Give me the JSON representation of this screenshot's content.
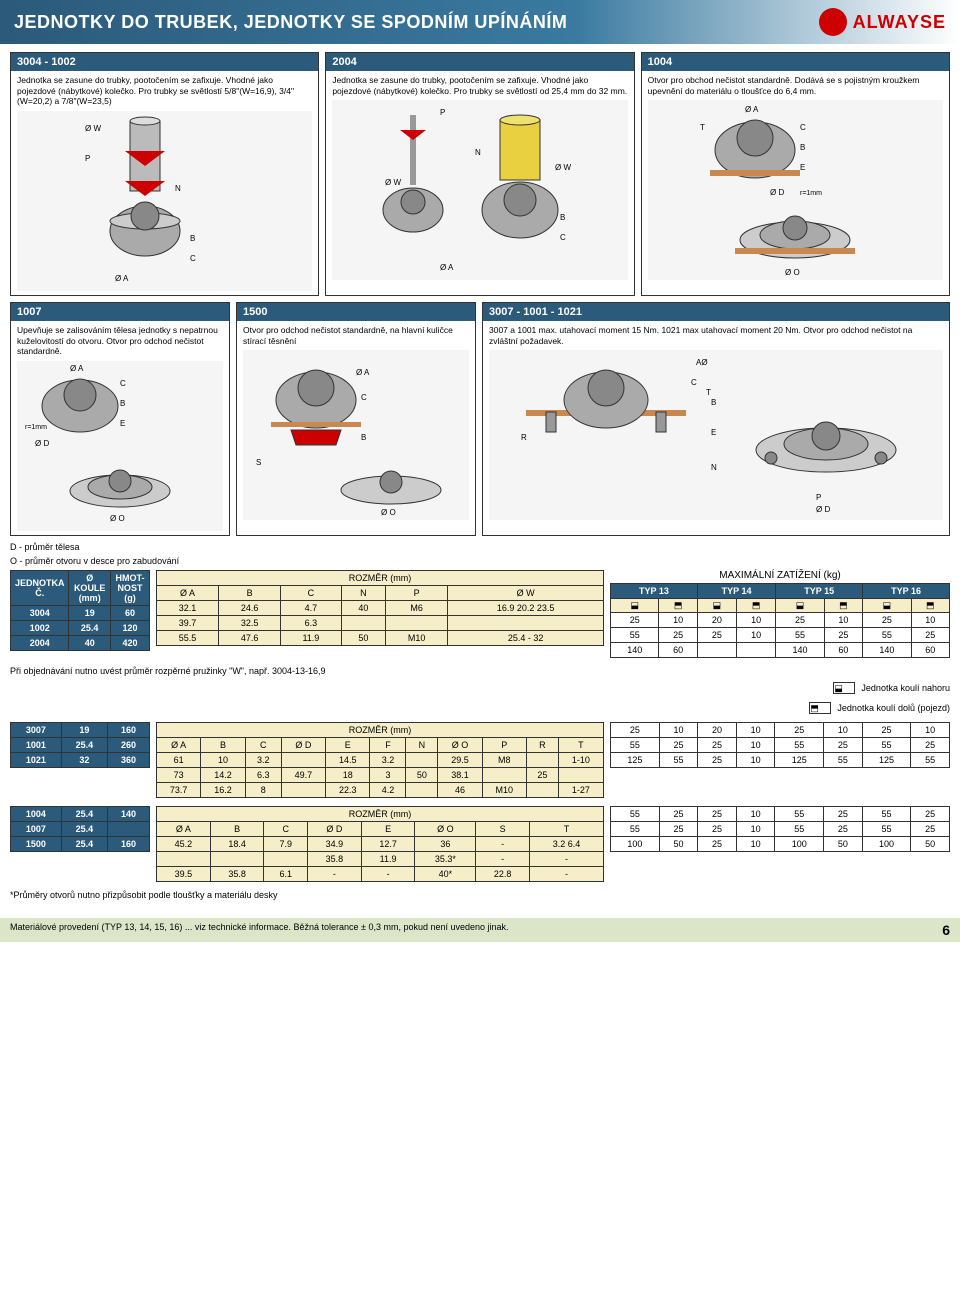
{
  "header": {
    "title": "JEDNOTKY DO TRUBEK, JEDNOTKY SE SPODNÍM UPÍNÁNÍM",
    "brand": "ALWAYSE"
  },
  "boxes": {
    "b3004_1002": {
      "title": "3004 - 1002",
      "desc": "Jednotka se zasune do trubky, pootočením se zafixuje. Vhodné jako pojezdové (nábytkové) kolečko. Pro trubky se světlostí 5/8\"(W=16,9), 3/4\"(W=20,2) a 7/8\"(W=23,5)"
    },
    "b2004": {
      "title": "2004",
      "desc": "Jednotka se zasune do trubky, pootočením se zafixuje. Vhodné jako pojezdové (nábytkové) kolečko. Pro trubky se světlostí od 25,4 mm do 32 mm."
    },
    "b1004": {
      "title": "1004",
      "desc": "Otvor pro obchod nečistot standardně. Dodává se s pojistným kroužkem upevnění do materiálu o tloušťce do 6,4 mm."
    },
    "b1007": {
      "title": "1007",
      "desc": "Upevňuje se zalisováním tělesa jednotky s nepatrnou kuželovitostí do otvoru. Otvor pro odchod nečistot standardně."
    },
    "b1500": {
      "title": "1500",
      "desc": "Otvor pro odchod nečistot standardně, na hlavní kuličce stírací těsnění"
    },
    "b3007": {
      "title": "3007 - 1001 - 1021",
      "desc": "3007 a 1001 max. utahovací moment 15 Nm. 1021 max utahovací moment 20 Nm. Otvor pro odchod nečistot na zvláštní požadavek."
    }
  },
  "notes": {
    "d_note": "D - průměr tělesa",
    "o_note": "O - průměr otvoru v desce pro zabudování",
    "order_note": "Při objednávání nutno uvést průměr rozpěrné pružinky \"W\", např. 3004-13-16,9",
    "ast_note": "*Průměry otvorů nutno přizpůsobit podle tloušťky a materiálu desky",
    "legend_up": "Jednotka koulí nahoru",
    "legend_down": "Jednotka koulí dolů (pojezd)"
  },
  "tableHeaders": {
    "unit": "JEDNOTKA Č.",
    "ball": "Ø KOULE (mm)",
    "weight": "HMOT-NOST (g)",
    "dims": "ROZMĚR (mm)",
    "maxload": "MAXIMÁLNÍ ZATÍŽENÍ (kg)",
    "typ13": "TYP 13",
    "typ14": "TYP 14",
    "typ15": "TYP 15",
    "typ16": "TYP 16"
  },
  "table1": {
    "cols": [
      "Ø A",
      "B",
      "C",
      "N",
      "P",
      "Ø W"
    ],
    "rows": [
      {
        "id": "3004",
        "ball": "19",
        "wt": "60",
        "dims": [
          "32.1",
          "24.6",
          "4.7",
          "40",
          "M6",
          "16.9 20.2 23.5"
        ],
        "loads": [
          "25",
          "10",
          "20",
          "10",
          "25",
          "10",
          "25",
          "10"
        ]
      },
      {
        "id": "1002",
        "ball": "25.4",
        "wt": "120",
        "dims": [
          "39.7",
          "32.5",
          "6.3",
          "",
          "",
          ""
        ],
        "loads": [
          "55",
          "25",
          "25",
          "10",
          "55",
          "25",
          "55",
          "25"
        ]
      },
      {
        "id": "2004",
        "ball": "40",
        "wt": "420",
        "dims": [
          "55.5",
          "47.6",
          "11.9",
          "50",
          "M10",
          "25.4 - 32"
        ],
        "loads": [
          "140",
          "60",
          "",
          "",
          "140",
          "60",
          "140",
          "60"
        ]
      }
    ]
  },
  "table2": {
    "cols": [
      "Ø A",
      "B",
      "C",
      "Ø D",
      "E",
      "F",
      "N",
      "Ø O",
      "P",
      "R",
      "T"
    ],
    "rows": [
      {
        "id": "3007",
        "ball": "19",
        "wt": "160",
        "dims": [
          "61",
          "10",
          "3.2",
          "",
          "14.5",
          "3.2",
          "",
          "29.5",
          "M8",
          "",
          "1-10"
        ],
        "loads": [
          "25",
          "10",
          "20",
          "10",
          "25",
          "10",
          "25",
          "10"
        ]
      },
      {
        "id": "1001",
        "ball": "25.4",
        "wt": "260",
        "dims": [
          "73",
          "14.2",
          "6.3",
          "49.7",
          "18",
          "3",
          "50",
          "38.1",
          "",
          "25",
          ""
        ],
        "loads": [
          "55",
          "25",
          "25",
          "10",
          "55",
          "25",
          "55",
          "25"
        ]
      },
      {
        "id": "1021",
        "ball": "32",
        "wt": "360",
        "dims": [
          "73.7",
          "16.2",
          "8",
          "",
          "22.3",
          "4.2",
          "",
          "46",
          "M10",
          "",
          "1-27"
        ],
        "loads": [
          "125",
          "55",
          "25",
          "10",
          "125",
          "55",
          "125",
          "55"
        ]
      }
    ]
  },
  "table3": {
    "cols": [
      "Ø A",
      "B",
      "C",
      "Ø D",
      "E",
      "Ø O",
      "S",
      "T"
    ],
    "rows": [
      {
        "id": "1004",
        "ball": "25.4",
        "wt": "140",
        "dims": [
          "45.2",
          "18.4",
          "7.9",
          "34.9",
          "12.7",
          "36",
          "-",
          "3.2 6.4"
        ],
        "loads": [
          "55",
          "25",
          "25",
          "10",
          "55",
          "25",
          "55",
          "25"
        ]
      },
      {
        "id": "1007",
        "ball": "25.4",
        "wt": "",
        "dims": [
          "",
          "",
          "",
          "35.8",
          "11.9",
          "35.3*",
          "-",
          "-"
        ],
        "loads": [
          "55",
          "25",
          "25",
          "10",
          "55",
          "25",
          "55",
          "25"
        ]
      },
      {
        "id": "1500",
        "ball": "25.4",
        "wt": "160",
        "dims": [
          "39.5",
          "35.8",
          "6.1",
          "-",
          "-",
          "40*",
          "22.8",
          "-"
        ],
        "loads": [
          "100",
          "50",
          "25",
          "10",
          "100",
          "50",
          "100",
          "50"
        ]
      }
    ]
  },
  "footer": {
    "text": "Materiálové provedení (TYP 13, 14, 15, 16) ... viz technické informace. Běžná tolerance ± 0,3 mm, pokud není uvedeno jinak.",
    "page": "6"
  },
  "colors": {
    "bar": "#2b5a7a",
    "cream": "#f5eec8",
    "footerbg": "#dde5c9",
    "red": "#c00000"
  }
}
